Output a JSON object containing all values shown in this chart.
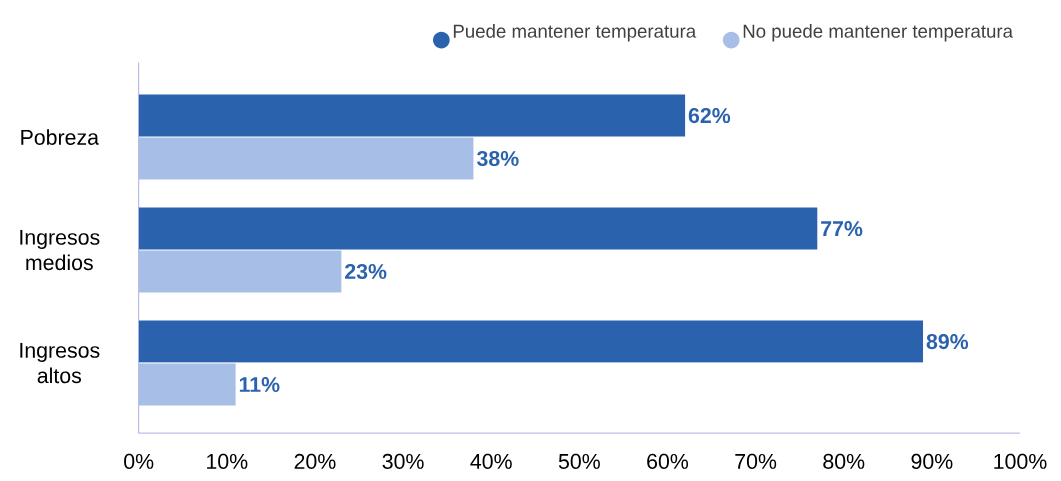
{
  "chart_data": {
    "type": "bar",
    "orientation": "horizontal",
    "categories": [
      "Pobreza",
      "Ingresos medios",
      "Ingresos altos"
    ],
    "series": [
      {
        "name": "Puede mantener temperatura",
        "color": "#2b62ad",
        "values": [
          62,
          77,
          89
        ],
        "value_labels": [
          "62%",
          "77%",
          "89%"
        ]
      },
      {
        "name": "No puede mantener temperatura",
        "color": "#a7bfe6",
        "values": [
          38,
          23,
          11
        ],
        "value_labels": [
          "38%",
          "23%",
          "11%"
        ]
      }
    ],
    "xlim": [
      0,
      100
    ],
    "xticks": [
      {
        "value": 0,
        "label": "0%"
      },
      {
        "value": 10,
        "label": "10%"
      },
      {
        "value": 20,
        "label": "20%"
      },
      {
        "value": 30,
        "label": "30%"
      },
      {
        "value": 40,
        "label": "40%"
      },
      {
        "value": 50,
        "label": "50%"
      },
      {
        "value": 60,
        "label": "60%"
      },
      {
        "value": 70,
        "label": "70%"
      },
      {
        "value": 80,
        "label": "80%"
      },
      {
        "value": 90,
        "label": "90%"
      },
      {
        "value": 100,
        "label": "100%"
      }
    ],
    "legend": "top right",
    "grid": false
  }
}
